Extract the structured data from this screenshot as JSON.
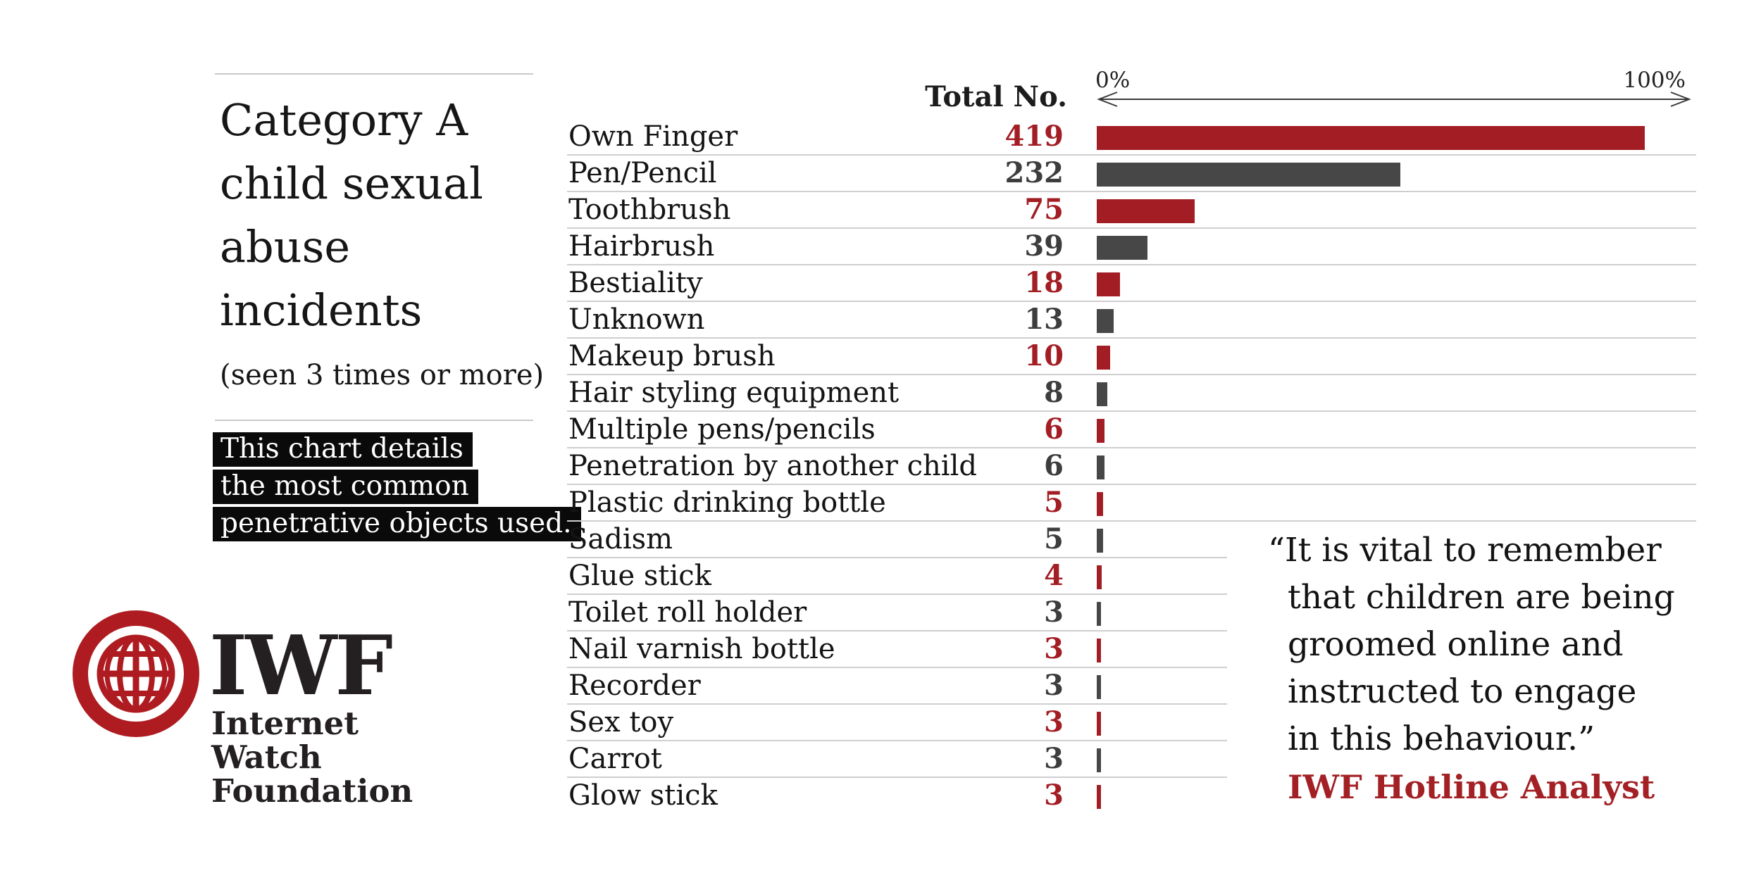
{
  "colors": {
    "bar_red": "#a31e24",
    "bar_dark": "#474747",
    "value_red": "#a31e24",
    "value_dark": "#3d3d3d",
    "logo_red": "#ae1c21",
    "highlight_bg": "#0a0a0a",
    "rule_gray": "#cfcfcf",
    "attribution_red": "#a32025"
  },
  "left_panel": {
    "title": "Category A child sexual abuse incidents",
    "subtitle": "(seen 3 times or more)",
    "highlight_lines": [
      "This chart details",
      "the most common",
      "penetrative objects used."
    ]
  },
  "logo": {
    "acronym": "IWF",
    "name_lines": [
      "Internet",
      "Watch",
      "Foundation"
    ],
    "globe_icon": "globe-icon"
  },
  "chart_data": {
    "type": "bar",
    "orientation": "horizontal",
    "value_header": "Total No.",
    "axis": {
      "min_label": "0%",
      "max_label": "100%"
    },
    "max_value": 419,
    "max_bar_axis_fraction": 0.93,
    "legend_position": "none",
    "grid": "row-separators",
    "rows": [
      {
        "label": "Own Finger",
        "value": 419,
        "color": "red"
      },
      {
        "label": "Pen/Pencil",
        "value": 232,
        "color": "dark"
      },
      {
        "label": "Toothbrush",
        "value": 75,
        "color": "red"
      },
      {
        "label": "Hairbrush",
        "value": 39,
        "color": "dark"
      },
      {
        "label": "Bestiality",
        "value": 18,
        "color": "red"
      },
      {
        "label": "Unknown",
        "value": 13,
        "color": "dark"
      },
      {
        "label": "Makeup brush",
        "value": 10,
        "color": "red"
      },
      {
        "label": "Hair styling equipment",
        "value": 8,
        "color": "dark"
      },
      {
        "label": "Multiple pens/pencils",
        "value": 6,
        "color": "red"
      },
      {
        "label": "Penetration by another child",
        "value": 6,
        "color": "dark"
      },
      {
        "label": "Plastic drinking bottle",
        "value": 5,
        "color": "red"
      },
      {
        "label": "Sadism",
        "value": 5,
        "color": "dark"
      },
      {
        "label": "Glue stick",
        "value": 4,
        "color": "red"
      },
      {
        "label": "Toilet roll holder",
        "value": 3,
        "color": "dark"
      },
      {
        "label": "Nail varnish bottle",
        "value": 3,
        "color": "red"
      },
      {
        "label": "Recorder",
        "value": 3,
        "color": "dark"
      },
      {
        "label": "Sex toy",
        "value": 3,
        "color": "red"
      },
      {
        "label": "Carrot",
        "value": 3,
        "color": "dark"
      },
      {
        "label": "Glow stick",
        "value": 3,
        "color": "red"
      }
    ]
  },
  "quote": {
    "lines": [
      "“It is vital to remember",
      "that children are being",
      "groomed online and",
      "instructed to engage",
      "in this behaviour.”"
    ],
    "attribution": "IWF Hotline Analyst"
  }
}
